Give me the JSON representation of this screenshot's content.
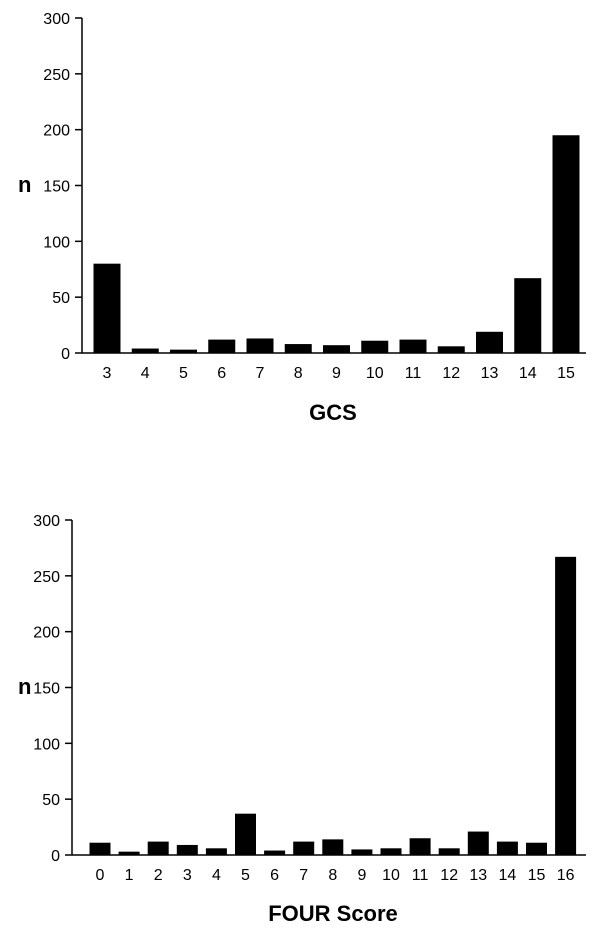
{
  "chart_data": [
    {
      "type": "bar",
      "xlabel": "GCS",
      "ylabel": "n",
      "ylim": [
        0,
        300
      ],
      "yticks": [
        0,
        50,
        100,
        150,
        200,
        250,
        300
      ],
      "categories": [
        "3",
        "4",
        "5",
        "6",
        "7",
        "8",
        "9",
        "10",
        "11",
        "12",
        "13",
        "14",
        "15"
      ],
      "values": [
        80,
        4,
        3,
        12,
        13,
        8,
        7,
        11,
        12,
        6,
        19,
        67,
        195
      ],
      "bar_color": "#000000",
      "grid": false,
      "legend": "none"
    },
    {
      "type": "bar",
      "xlabel": "FOUR Score",
      "ylabel": "n",
      "ylim": [
        0,
        300
      ],
      "yticks": [
        0,
        50,
        100,
        150,
        200,
        250,
        300
      ],
      "categories": [
        "0",
        "1",
        "2",
        "3",
        "4",
        "5",
        "6",
        "7",
        "8",
        "9",
        "10",
        "11",
        "12",
        "13",
        "14",
        "15",
        "16"
      ],
      "values": [
        11,
        3,
        12,
        9,
        6,
        37,
        4,
        12,
        14,
        5,
        6,
        15,
        6,
        21,
        12,
        11,
        267
      ],
      "bar_color": "#000000",
      "grid": false,
      "legend": "none"
    }
  ]
}
